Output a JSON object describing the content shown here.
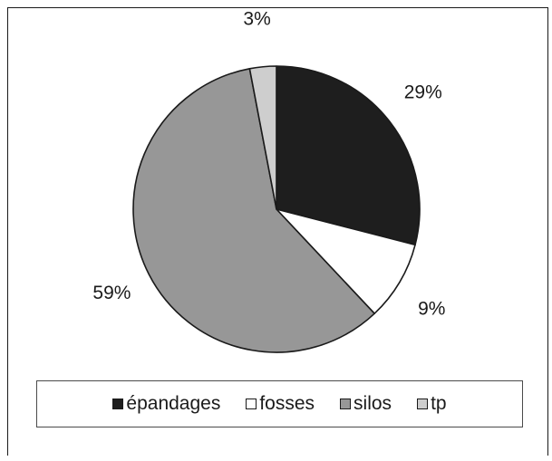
{
  "chart_data": {
    "type": "pie",
    "slices": [
      {
        "label": "épandages",
        "value": 29,
        "value_label": "29%",
        "color": "#1e1e1e"
      },
      {
        "label": "fosses",
        "value": 9,
        "value_label": "9%",
        "color": "#ffffff"
      },
      {
        "label": "silos",
        "value": 59,
        "value_label": "59%",
        "color": "#979797"
      },
      {
        "label": "tp",
        "value": 3,
        "value_label": "3%",
        "color": "#cecece"
      }
    ],
    "start_angle": "top",
    "direction": "clockwise",
    "legend_position": "bottom",
    "title": ""
  }
}
